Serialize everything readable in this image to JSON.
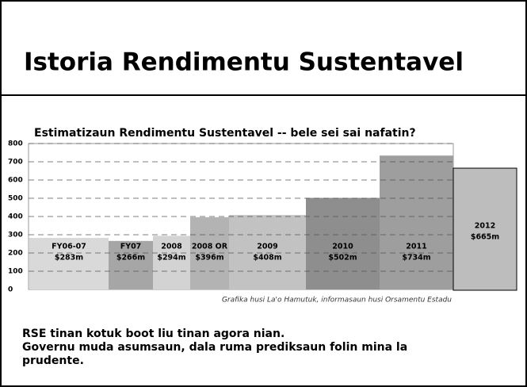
{
  "title": "Istoria Rendimentu Sustentavel",
  "chart_data": {
    "type": "bar",
    "title": "Estimatizaun Rendimentu Sustentavel -- bele sei sai nafatin?",
    "categories": [
      "FY06-07",
      "FY07",
      "2008",
      "2008 OR",
      "2009",
      "2010",
      "2011",
      "2012"
    ],
    "values": [
      283,
      266,
      294,
      396,
      408,
      502,
      734,
      665
    ],
    "value_labels": [
      "$283m",
      "$266m",
      "$294m",
      "$396m",
      "$408m",
      "$502m",
      "$734m",
      "$665m"
    ],
    "colors": [
      "#d9d9d9",
      "#a6a6a6",
      "#d3d3d3",
      "#b3b3b3",
      "#c2c2c2",
      "#8e8e8e",
      "#9e9e9e",
      "#bdbdbd"
    ],
    "ylim": [
      0,
      800
    ],
    "yticks": [
      0,
      100,
      200,
      300,
      400,
      500,
      600,
      700,
      800
    ],
    "grid": true,
    "source": "Grafika husi La'o Hamutuk, informasaun husi Orsamentu Estadu"
  },
  "body": [
    "RSE tinan kotuk boot liu tinan agora nian.",
    "Governu muda asumsaun, dala ruma prediksaun folin mina la prudente."
  ]
}
